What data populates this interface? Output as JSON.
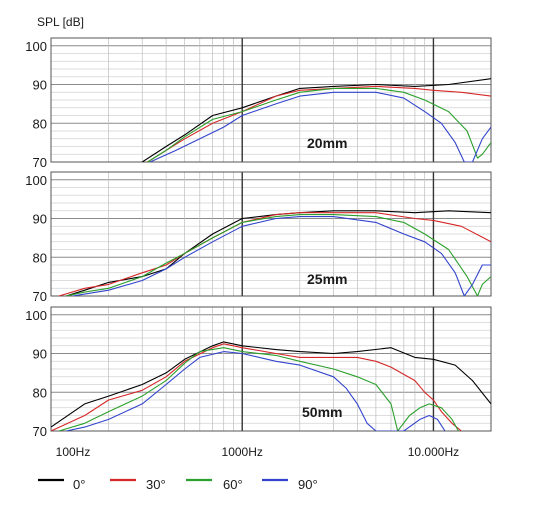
{
  "chart_data": {
    "type": "line",
    "y_label": "SPL [dB]",
    "x_scale": "log",
    "x_range_hz": [
      100,
      20000
    ],
    "x_tick_labels": [
      {
        "hz": 100,
        "label": "100Hz"
      },
      {
        "hz": 1000,
        "label": "1000Hz"
      },
      {
        "hz": 10000,
        "label": "10.000Hz"
      }
    ],
    "grid": true,
    "legend_position": "bottom",
    "series_styles": [
      {
        "name": "0°",
        "color": "#000000"
      },
      {
        "name": "30°",
        "color": "#d62728"
      },
      {
        "name": "60°",
        "color": "#2ca02c"
      },
      {
        "name": "90°",
        "color": "#3344cc"
      }
    ],
    "panels": [
      {
        "label": "20mm",
        "y_range": [
          70,
          102
        ],
        "y_ticks": [
          70,
          80,
          90,
          100
        ],
        "series": [
          {
            "name": "0°",
            "points": [
              [
                300,
                70
              ],
              [
                400,
                74
              ],
              [
                500,
                77
              ],
              [
                700,
                82
              ],
              [
                1000,
                84
              ],
              [
                1500,
                87
              ],
              [
                2000,
                89
              ],
              [
                3000,
                89.5
              ],
              [
                5000,
                90
              ],
              [
                8000,
                89.5
              ],
              [
                12000,
                90
              ],
              [
                20000,
                91.5
              ]
            ]
          },
          {
            "name": "30°",
            "points": [
              [
                320,
                70
              ],
              [
                400,
                73
              ],
              [
                500,
                76
              ],
              [
                700,
                80
              ],
              [
                1000,
                83
              ],
              [
                1500,
                87
              ],
              [
                2000,
                88.5
              ],
              [
                3000,
                89
              ],
              [
                5000,
                89.5
              ],
              [
                8000,
                89
              ],
              [
                10000,
                88.5
              ],
              [
                14000,
                88
              ],
              [
                20000,
                87
              ]
            ]
          },
          {
            "name": "60°",
            "points": [
              [
                320,
                70
              ],
              [
                400,
                73
              ],
              [
                500,
                76.5
              ],
              [
                700,
                81
              ],
              [
                1000,
                83
              ],
              [
                1500,
                86
              ],
              [
                2000,
                88
              ],
              [
                3000,
                89
              ],
              [
                5000,
                89
              ],
              [
                7000,
                88
              ],
              [
                9000,
                86
              ],
              [
                12000,
                83
              ],
              [
                15000,
                78
              ],
              [
                17000,
                71
              ],
              [
                18000,
                72
              ],
              [
                20000,
                75
              ]
            ]
          },
          {
            "name": "90°",
            "points": [
              [
                330,
                70
              ],
              [
                450,
                73
              ],
              [
                600,
                76
              ],
              [
                800,
                79
              ],
              [
                1000,
                82
              ],
              [
                1500,
                85
              ],
              [
                2000,
                87
              ],
              [
                3000,
                88
              ],
              [
                5000,
                88
              ],
              [
                7000,
                86.5
              ],
              [
                9000,
                83
              ],
              [
                11000,
                80
              ],
              [
                13000,
                75
              ],
              [
                14500,
                70
              ],
              [
                16000,
                70
              ],
              [
                18000,
                76
              ],
              [
                20000,
                79
              ]
            ]
          }
        ]
      },
      {
        "label": "25mm",
        "y_range": [
          70,
          102
        ],
        "y_ticks": [
          70,
          80,
          90,
          100
        ],
        "series": [
          {
            "name": "0°",
            "points": [
              [
                120,
                70
              ],
              [
                150,
                71.5
              ],
              [
                200,
                73.5
              ],
              [
                300,
                75
              ],
              [
                400,
                77
              ],
              [
                500,
                81
              ],
              [
                700,
                86
              ],
              [
                1000,
                90
              ],
              [
                1500,
                91
              ],
              [
                2000,
                91.5
              ],
              [
                3000,
                92
              ],
              [
                5000,
                92
              ],
              [
                8000,
                91.5
              ],
              [
                12000,
                92
              ],
              [
                20000,
                91.5
              ]
            ]
          },
          {
            "name": "30°",
            "points": [
              [
                110,
                70
              ],
              [
                150,
                72
              ],
              [
                200,
                73
              ],
              [
                300,
                76
              ],
              [
                400,
                78
              ],
              [
                500,
                81
              ],
              [
                700,
                85
              ],
              [
                1000,
                89
              ],
              [
                1500,
                91
              ],
              [
                2000,
                91.5
              ],
              [
                3000,
                91.5
              ],
              [
                5000,
                91.5
              ],
              [
                8000,
                90
              ],
              [
                10000,
                89.5
              ],
              [
                14000,
                88
              ],
              [
                20000,
                84
              ]
            ]
          },
          {
            "name": "60°",
            "points": [
              [
                120,
                70
              ],
              [
                150,
                71
              ],
              [
                200,
                72
              ],
              [
                300,
                75
              ],
              [
                400,
                78.5
              ],
              [
                500,
                81
              ],
              [
                700,
                85
              ],
              [
                1000,
                89
              ],
              [
                1500,
                90.5
              ],
              [
                2000,
                91
              ],
              [
                3000,
                91
              ],
              [
                5000,
                90.5
              ],
              [
                7000,
                89
              ],
              [
                9000,
                86
              ],
              [
                12000,
                82
              ],
              [
                15000,
                75
              ],
              [
                17000,
                70
              ],
              [
                18000,
                73
              ],
              [
                20000,
                75
              ]
            ]
          },
          {
            "name": "90°",
            "points": [
              [
                130,
                70
              ],
              [
                150,
                70.5
              ],
              [
                200,
                71.5
              ],
              [
                300,
                74
              ],
              [
                400,
                77
              ],
              [
                500,
                80
              ],
              [
                700,
                84
              ],
              [
                1000,
                88
              ],
              [
                1500,
                90
              ],
              [
                2000,
                90.5
              ],
              [
                3000,
                90.5
              ],
              [
                5000,
                89
              ],
              [
                7000,
                86
              ],
              [
                9000,
                84
              ],
              [
                11000,
                81
              ],
              [
                13000,
                76
              ],
              [
                14500,
                70
              ],
              [
                16000,
                73
              ],
              [
                18000,
                78
              ],
              [
                20000,
                78
              ]
            ]
          }
        ]
      },
      {
        "label": "50mm",
        "y_range": [
          70,
          102
        ],
        "y_ticks": [
          70,
          80,
          90,
          100
        ],
        "series": [
          {
            "name": "0°",
            "points": [
              [
                100,
                71
              ],
              [
                150,
                77
              ],
              [
                200,
                79
              ],
              [
                300,
                82
              ],
              [
                400,
                85
              ],
              [
                500,
                88.5
              ],
              [
                700,
                92
              ],
              [
                800,
                93
              ],
              [
                1000,
                92
              ],
              [
                1500,
                91
              ],
              [
                2000,
                90.5
              ],
              [
                3000,
                90
              ],
              [
                4000,
                90.5
              ],
              [
                6000,
                91.5
              ],
              [
                8000,
                89
              ],
              [
                10000,
                88.5
              ],
              [
                13000,
                87
              ],
              [
                16000,
                83
              ],
              [
                20000,
                77
              ]
            ]
          },
          {
            "name": "30°",
            "points": [
              [
                100,
                70
              ],
              [
                150,
                74
              ],
              [
                200,
                78
              ],
              [
                300,
                80.5
              ],
              [
                400,
                84
              ],
              [
                500,
                88
              ],
              [
                700,
                91.5
              ],
              [
                800,
                92.5
              ],
              [
                1000,
                91.5
              ],
              [
                1500,
                90
              ],
              [
                2000,
                89
              ],
              [
                3000,
                89
              ],
              [
                4000,
                89
              ],
              [
                5000,
                88
              ],
              [
                6000,
                86.5
              ],
              [
                8000,
                83
              ],
              [
                9000,
                80
              ],
              [
                10000,
                78
              ],
              [
                11000,
                75
              ],
              [
                12500,
                72
              ],
              [
                14000,
                70
              ]
            ]
          },
          {
            "name": "60°",
            "points": [
              [
                110,
                70
              ],
              [
                150,
                72
              ],
              [
                200,
                75
              ],
              [
                300,
                79
              ],
              [
                400,
                83
              ],
              [
                500,
                87.5
              ],
              [
                600,
                90.5
              ],
              [
                800,
                91.5
              ],
              [
                1000,
                90.5
              ],
              [
                1500,
                89.5
              ],
              [
                2000,
                88
              ],
              [
                3000,
                86
              ],
              [
                4000,
                84
              ],
              [
                5000,
                82
              ],
              [
                6000,
                77
              ],
              [
                6500,
                70
              ],
              [
                7500,
                74
              ],
              [
                8500,
                76
              ],
              [
                9500,
                77
              ],
              [
                11000,
                76
              ],
              [
                12500,
                73
              ],
              [
                13500,
                70
              ]
            ]
          },
          {
            "name": "90°",
            "points": [
              [
                120,
                70
              ],
              [
                150,
                71
              ],
              [
                200,
                73
              ],
              [
                300,
                77
              ],
              [
                400,
                82
              ],
              [
                500,
                86
              ],
              [
                600,
                89
              ],
              [
                800,
                90.5
              ],
              [
                1000,
                90
              ],
              [
                1500,
                88
              ],
              [
                2000,
                87
              ],
              [
                3000,
                84
              ],
              [
                3500,
                81
              ],
              [
                4000,
                77
              ],
              [
                4500,
                72
              ],
              [
                5000,
                70
              ],
              [
                7000,
                70
              ],
              [
                8500,
                73
              ],
              [
                9500,
                74
              ],
              [
                10500,
                73
              ],
              [
                11500,
                70
              ]
            ]
          }
        ]
      }
    ]
  }
}
